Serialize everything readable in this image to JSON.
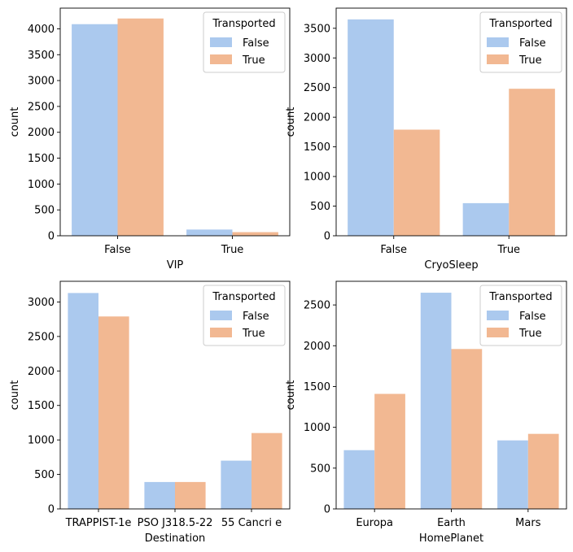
{
  "colors": {
    "false": "#abc9ee",
    "true": "#f2b892",
    "axis": "#000000",
    "legend_border": "#cccccc"
  },
  "chart_data": [
    {
      "type": "bar",
      "xlabel": "VIP",
      "ylabel": "count",
      "categories": [
        "False",
        "True"
      ],
      "yticks": [
        0,
        500,
        1000,
        1500,
        2000,
        2500,
        3000,
        3500,
        4000
      ],
      "ylim": [
        0,
        4400
      ],
      "legend": {
        "title": "Transported",
        "placement": "top-right"
      },
      "series": [
        {
          "name": "False",
          "values": [
            4090,
            120
          ]
        },
        {
          "name": "True",
          "values": [
            4200,
            70
          ]
        }
      ]
    },
    {
      "type": "bar",
      "xlabel": "CryoSleep",
      "ylabel": "count",
      "categories": [
        "False",
        "True"
      ],
      "yticks": [
        0,
        500,
        1000,
        1500,
        2000,
        2500,
        3000,
        3500
      ],
      "ylim": [
        0,
        3840
      ],
      "legend": {
        "title": "Transported",
        "placement": "top-right"
      },
      "series": [
        {
          "name": "False",
          "values": [
            3650,
            550
          ]
        },
        {
          "name": "True",
          "values": [
            1790,
            2480
          ]
        }
      ]
    },
    {
      "type": "bar",
      "xlabel": "Destination",
      "ylabel": "count",
      "categories": [
        "TRAPPIST-1e",
        "PSO J318.5-22",
        "55 Cancri e"
      ],
      "yticks": [
        0,
        500,
        1000,
        1500,
        2000,
        2500,
        3000
      ],
      "ylim": [
        0,
        3300
      ],
      "legend": {
        "title": "Transported",
        "placement": "top-right"
      },
      "series": [
        {
          "name": "False",
          "values": [
            3130,
            390,
            700
          ]
        },
        {
          "name": "True",
          "values": [
            2790,
            390,
            1100
          ]
        }
      ]
    },
    {
      "type": "bar",
      "xlabel": "HomePlanet",
      "ylabel": "count",
      "categories": [
        "Europa",
        "Earth",
        "Mars"
      ],
      "yticks": [
        0,
        500,
        1000,
        1500,
        2000,
        2500
      ],
      "ylim": [
        0,
        2790
      ],
      "legend": {
        "title": "Transported",
        "placement": "top-right"
      },
      "series": [
        {
          "name": "False",
          "values": [
            720,
            2650,
            840
          ]
        },
        {
          "name": "True",
          "values": [
            1410,
            1960,
            920
          ]
        }
      ]
    }
  ]
}
